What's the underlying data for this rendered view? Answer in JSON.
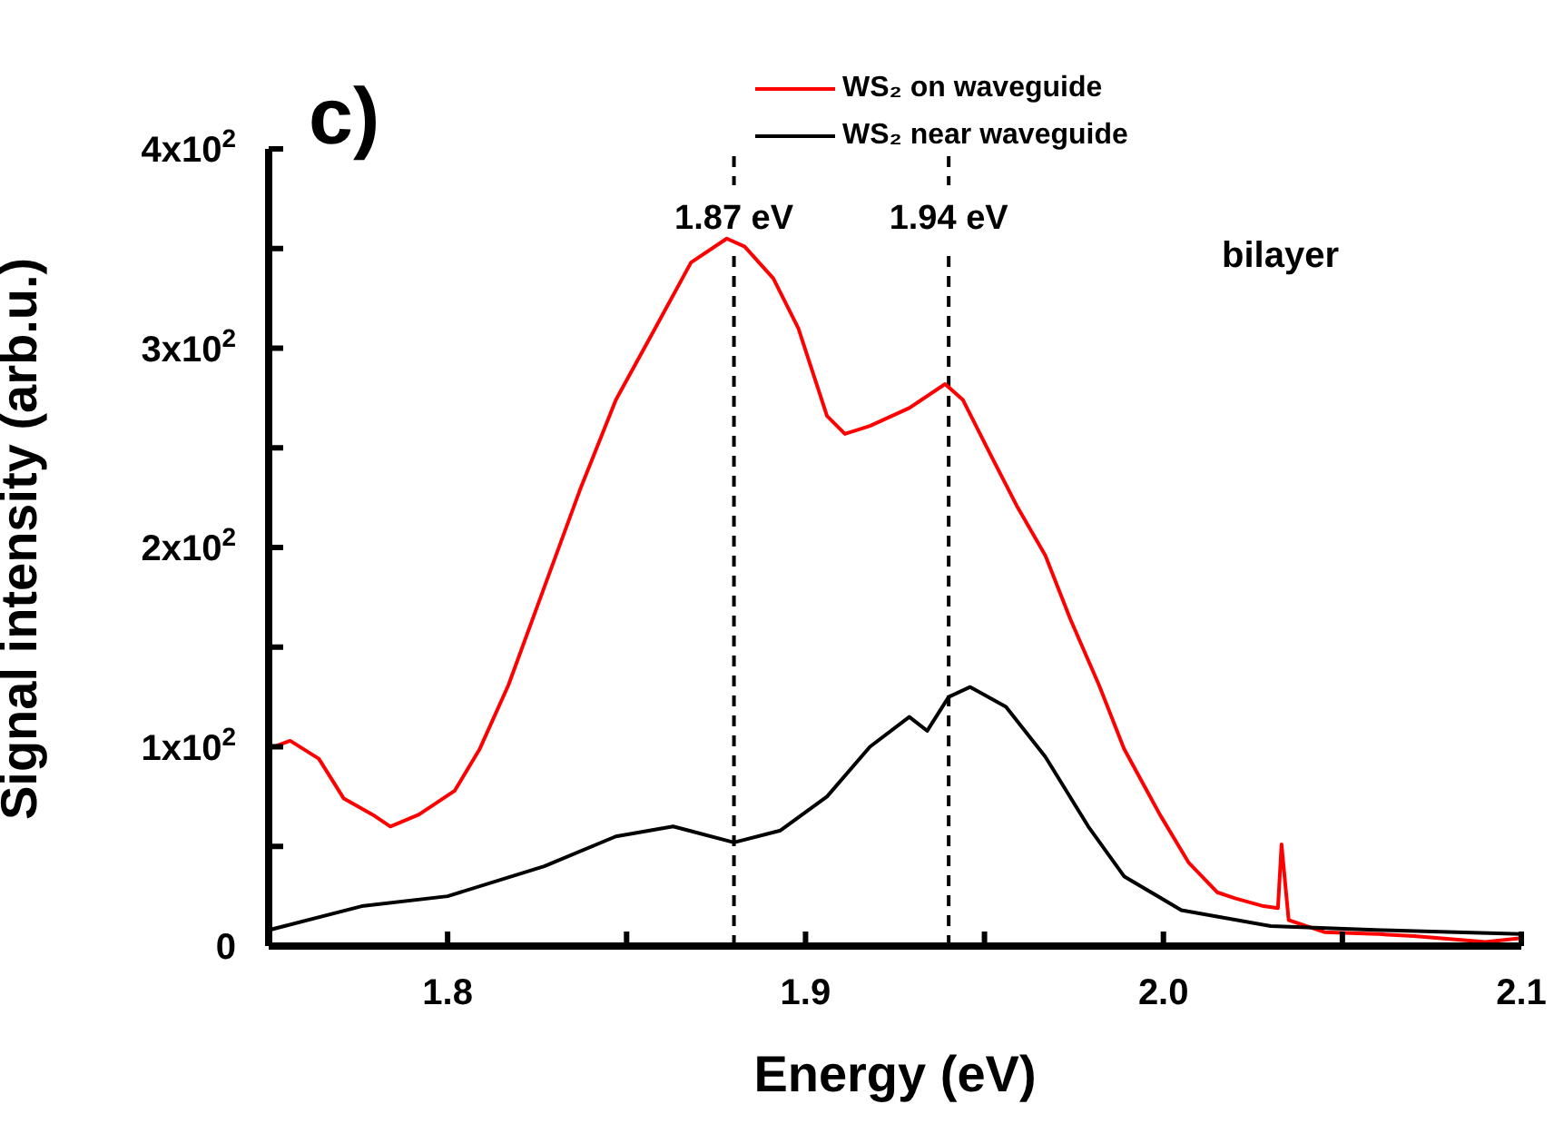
{
  "chart_data": {
    "type": "line",
    "xlabel": "Energy (eV)",
    "ylabel": "Signal intensity (arb.u.)",
    "xlim": [
      1.75,
      2.1
    ],
    "xticks": [
      {
        "value": 1.75,
        "label": null
      },
      1.8,
      {
        "value": 1.85,
        "label": null
      },
      1.9,
      {
        "value": 1.95,
        "label": null
      },
      {
        "value": 2.0,
        "label": "2.0"
      },
      {
        "value": 2.05,
        "label": null
      },
      2.1
    ],
    "ylim": [
      0,
      400
    ],
    "yticks": [
      0,
      {
        "value": 50,
        "label": null
      },
      {
        "value": 100,
        "label": "1x10$^{2}$"
      },
      {
        "value": 150,
        "label": null
      },
      {
        "value": 200,
        "label": "2x10$^{2}$"
      },
      {
        "value": 250,
        "label": null
      },
      {
        "value": 300,
        "label": "3x10$^{2}$"
      },
      {
        "value": 350,
        "label": null
      },
      {
        "value": 400,
        "label": "4x10$^{2}$"
      }
    ],
    "grid": false,
    "legend": "top right",
    "marker": "none",
    "line_style": "solid",
    "annotations": [
      "c)",
      "bilayer"
    ],
    "ref_lines": [
      {
        "axis": "x",
        "value": 1.88,
        "label": "1.87 eV",
        "line_style": "dashed",
        "color": "#000000"
      },
      {
        "axis": "x",
        "value": 1.94,
        "label": "1.94 eV",
        "line_style": "dashed",
        "color": "#000000"
      }
    ],
    "series": [
      {
        "name": "WS₂ on waveguide",
        "color": "#ff0000",
        "x": [
          1.75,
          1.756,
          1.764,
          1.771,
          1.779,
          1.784,
          1.792,
          1.802,
          1.809,
          1.817,
          1.827,
          1.837,
          1.847,
          1.858,
          1.868,
          1.878,
          1.883,
          1.891,
          1.898,
          1.906,
          1.911,
          1.918,
          1.929,
          1.939,
          1.944,
          1.951,
          1.959,
          1.967,
          1.974,
          1.982,
          1.989,
          1.999,
          2.007,
          2.015,
          2.02,
          2.028,
          2.032,
          2.033,
          2.035,
          2.045,
          2.06,
          2.07,
          2.09,
          2.1
        ],
        "values": [
          99,
          103,
          94,
          74,
          66,
          60,
          66,
          78,
          99,
          131,
          180,
          229,
          274,
          310,
          343,
          355,
          351,
          335,
          310,
          266,
          257,
          261,
          270,
          282,
          274,
          249,
          221,
          196,
          164,
          131,
          99,
          66,
          42,
          27,
          24,
          20,
          19,
          51,
          13,
          7,
          6,
          5,
          2,
          4
        ]
      },
      {
        "name": "WS₂ near waveguide",
        "color": "#000000",
        "x": [
          1.75,
          1.776,
          1.8,
          1.827,
          1.847,
          1.863,
          1.88,
          1.893,
          1.906,
          1.918,
          1.929,
          1.934,
          1.94,
          1.946,
          1.956,
          1.967,
          1.979,
          1.989,
          2.005,
          2.03,
          2.061,
          2.1
        ],
        "values": [
          8,
          20,
          25,
          40,
          55,
          60,
          52,
          58,
          75,
          100,
          115,
          108,
          125,
          130,
          120,
          95,
          60,
          35,
          18,
          10,
          8,
          6
        ]
      }
    ]
  }
}
